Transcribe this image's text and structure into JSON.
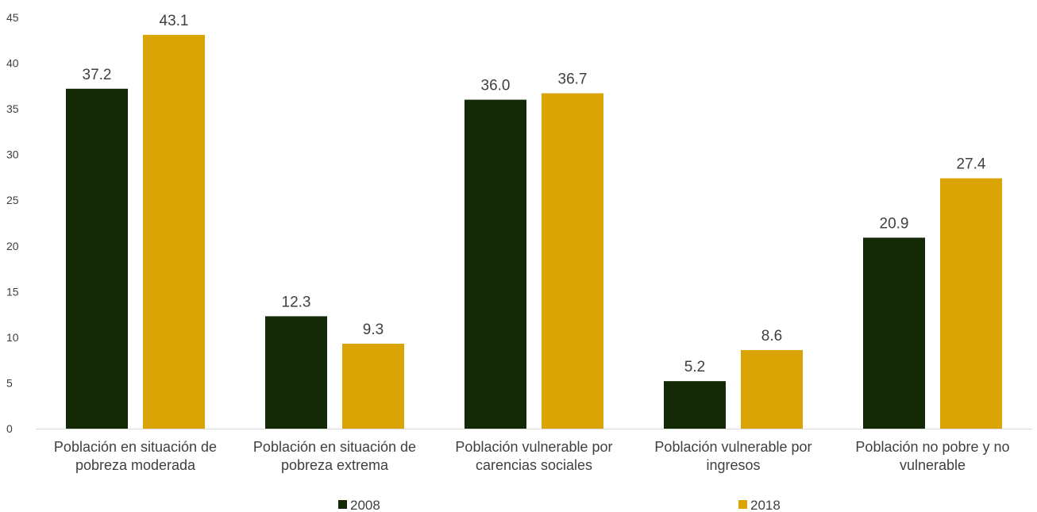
{
  "chart_data": {
    "type": "bar",
    "categories": [
      [
        "Población en situación de",
        "pobreza moderada"
      ],
      [
        "Población en situación de",
        "pobreza extrema"
      ],
      [
        "Población vulnerable por",
        "carencias sociales"
      ],
      [
        "Población vulnerable por",
        "ingresos"
      ],
      [
        "Población no pobre y no",
        "vulnerable"
      ]
    ],
    "series": [
      {
        "name": "2008",
        "values": [
          37.2,
          12.3,
          36.0,
          5.2,
          20.9
        ],
        "labels": [
          "37.2",
          "12.3",
          "36.0",
          "5.2",
          "20.9"
        ],
        "color": "#142a06"
      },
      {
        "name": "2018",
        "values": [
          43.1,
          9.3,
          36.7,
          8.6,
          27.4
        ],
        "labels": [
          "43.1",
          "9.3",
          "36.7",
          "8.6",
          "27.4"
        ],
        "color": "#d9a404"
      }
    ],
    "ylim": [
      0,
      45
    ],
    "yticks": [
      "0",
      "5",
      "10",
      "15",
      "20",
      "25",
      "30",
      "35",
      "40",
      "45"
    ],
    "grid": false,
    "legend_position": "bottom"
  }
}
